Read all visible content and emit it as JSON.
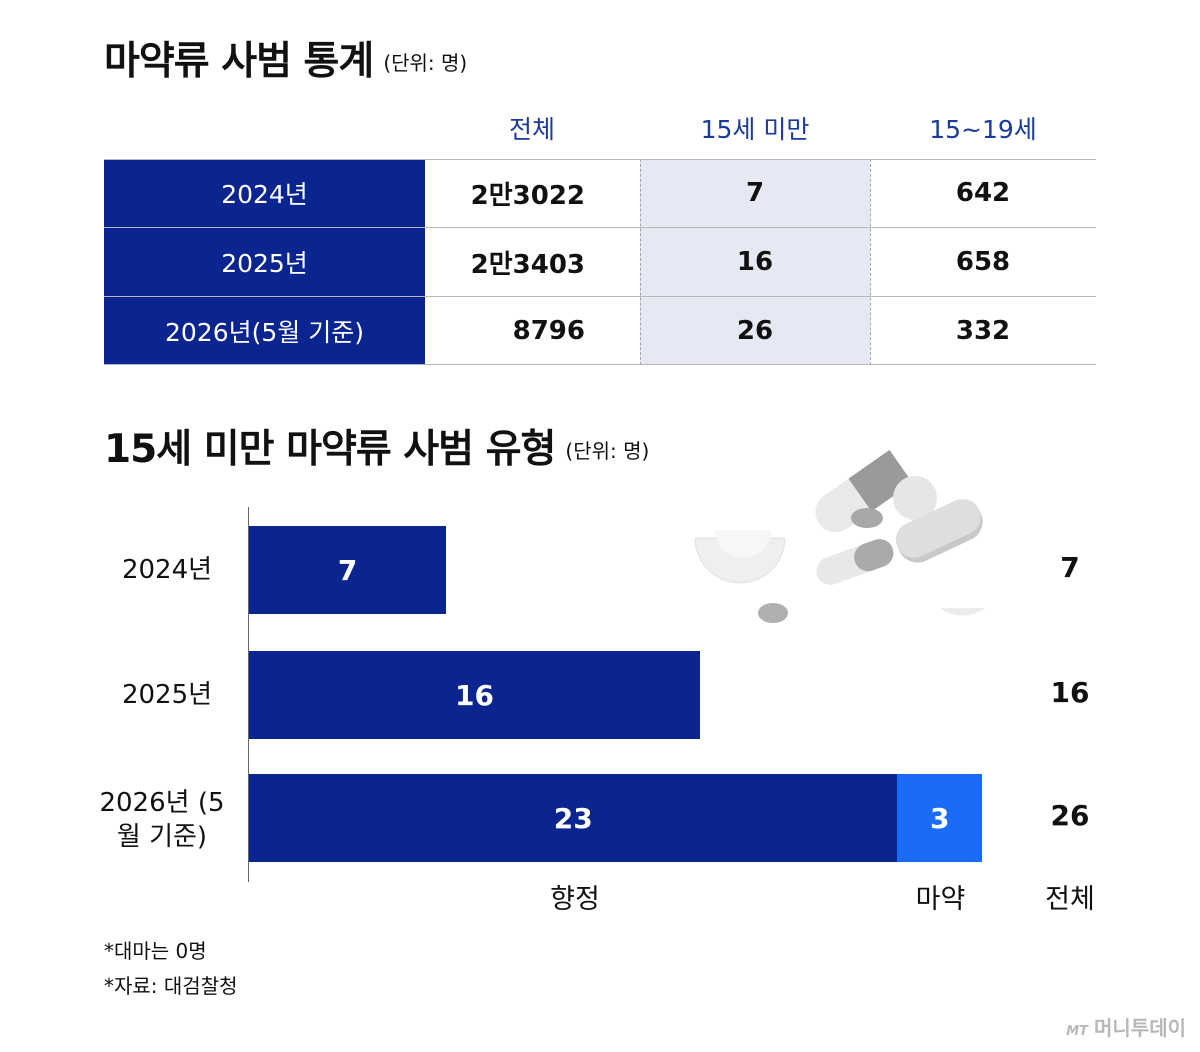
{
  "title1": "마약류 사범 통계",
  "unit1": "(단위: 명)",
  "table": {
    "columns": [
      "전체",
      "15세 미만",
      "15~19세"
    ],
    "rows": [
      {
        "label": "2024년",
        "total": "2만3022",
        "under15": "7",
        "age15_19": "642"
      },
      {
        "label": "2025년",
        "total": "2만3403",
        "under15": "16",
        "age15_19": "658"
      },
      {
        "label": "2026년(5월 기준)",
        "total": "8796",
        "under15": "26",
        "age15_19": "332"
      }
    ]
  },
  "title2": "15세 미만 마약류 사범 유형",
  "unit2": "(단위: 명)",
  "chart_data": {
    "type": "bar",
    "orientation": "horizontal",
    "stacked": true,
    "categories": [
      "2024년",
      "2025년",
      "2026년 (5월 기준)"
    ],
    "series": [
      {
        "name": "향정",
        "values": [
          7,
          16,
          23
        ],
        "color": "#0a2590"
      },
      {
        "name": "마약",
        "values": [
          0,
          0,
          3
        ],
        "color": "#1a6bf5"
      }
    ],
    "totals": [
      7,
      16,
      26
    ],
    "total_label": "전체",
    "xlim": [
      0,
      26
    ]
  },
  "notes": [
    "*대마는 0명",
    "*자료: 대검찰청"
  ],
  "brand": {
    "mark": "MT",
    "name": "머니투데이"
  },
  "colors": {
    "navy": "#0a2590",
    "blue": "#1a6bf5",
    "header_text": "#1a3a9c",
    "highlight_bg": "#e6e9f3"
  }
}
